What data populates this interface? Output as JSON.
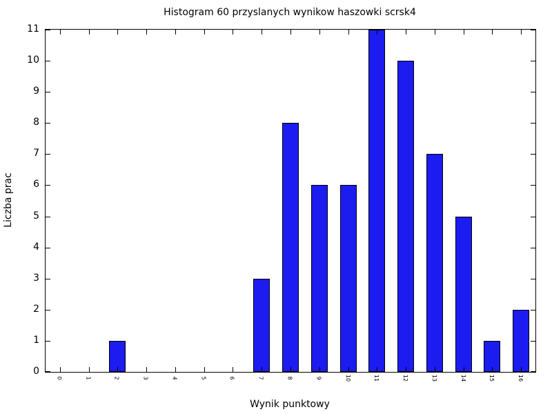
{
  "chart_data": {
    "type": "bar",
    "title": "Histogram 60 przyslanych wynikow haszowki scrsk4",
    "xlabel": "Wynik punktowy",
    "ylabel": "Liczba prac",
    "categories": [
      "0",
      "1",
      "2",
      "3",
      "4",
      "5",
      "6",
      "7",
      "8",
      "9",
      "10",
      "11",
      "12",
      "13",
      "14",
      "15",
      "16"
    ],
    "values": [
      0,
      0,
      1,
      0,
      0,
      0,
      0,
      3,
      8,
      6,
      6,
      11,
      10,
      7,
      5,
      1,
      2
    ],
    "ylim": [
      0,
      11
    ],
    "yticks": [
      0,
      1,
      2,
      3,
      4,
      5,
      6,
      7,
      8,
      9,
      10,
      11
    ],
    "grid": false,
    "legend": "none",
    "xtick_rotation_deg": 90,
    "colors": {
      "bar_fill": "#1c1cf0",
      "bar_border": "#000000",
      "axis": "#000000",
      "background": "#ffffff",
      "text": "#000000"
    }
  }
}
